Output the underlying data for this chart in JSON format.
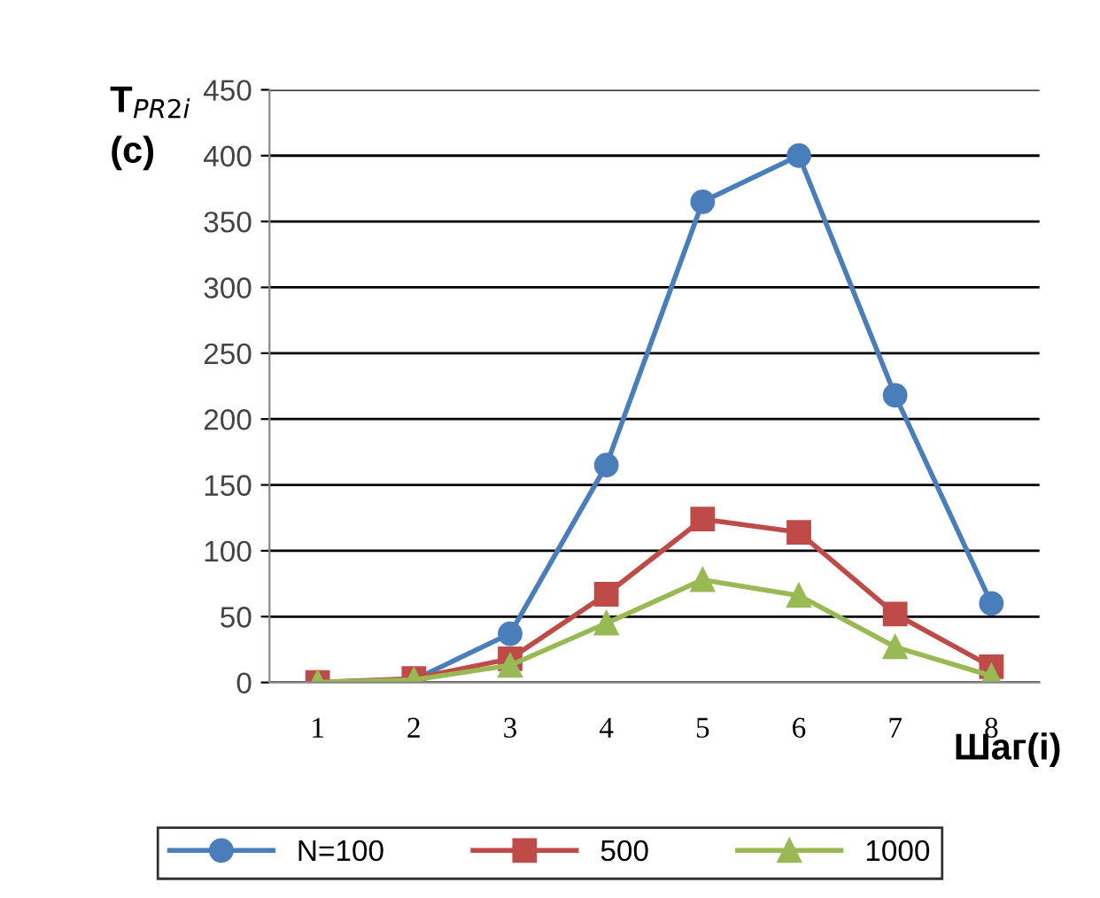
{
  "chart_data": {
    "type": "line",
    "ylabel": "T$_{PR2i}$\n(c)",
    "xlabel": "Шаг(i)",
    "categories": [
      "1",
      "2",
      "3",
      "4",
      "5",
      "6",
      "7",
      "8"
    ],
    "series": [
      {
        "name": "N=100",
        "color": "#4a7ebb",
        "marker": "circle",
        "values": [
          0,
          2,
          37,
          165,
          365,
          400,
          218,
          60
        ]
      },
      {
        "name": "500",
        "color": "#be4b48",
        "marker": "square",
        "values": [
          0,
          3,
          18,
          67,
          124,
          114,
          52,
          12
        ]
      },
      {
        "name": "1000",
        "color": "#98b954",
        "marker": "triangle",
        "values": [
          0,
          2,
          13,
          45,
          78,
          66,
          27,
          5
        ]
      }
    ],
    "ylim": [
      0,
      450
    ],
    "yticks": [
      0,
      50,
      100,
      150,
      200,
      250,
      300,
      350,
      400,
      450
    ],
    "grid": "y",
    "legend": "bottom"
  }
}
